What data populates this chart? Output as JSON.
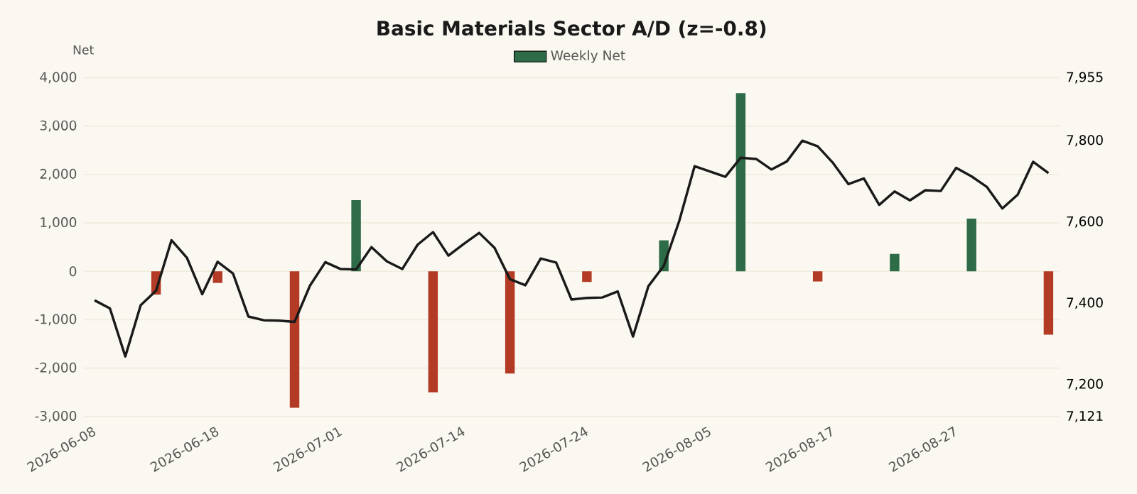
{
  "chart_data": {
    "type": "bar",
    "title": "Basic Materials Sector A/D (z=-0.8)",
    "ylabel": "Net",
    "categories": [
      "2026-06-08",
      null,
      null,
      null,
      null,
      null,
      null,
      null,
      "2026-06-18",
      null,
      null,
      null,
      null,
      null,
      null,
      null,
      "2026-07-01",
      null,
      null,
      null,
      null,
      null,
      null,
      null,
      "2026-07-14",
      null,
      null,
      null,
      null,
      null,
      null,
      null,
      "2026-07-24",
      null,
      null,
      null,
      null,
      null,
      null,
      null,
      "2026-08-05",
      null,
      null,
      null,
      null,
      null,
      null,
      null,
      "2026-08-17",
      null,
      null,
      null,
      null,
      null,
      null,
      null,
      "2026-08-27",
      null,
      null,
      null,
      null,
      null,
      null
    ],
    "series": [
      {
        "name": "Weekly Net",
        "color": "#2e6b47",
        "values": [
          null,
          null,
          null,
          null,
          -480,
          null,
          null,
          null,
          -240,
          null,
          null,
          null,
          null,
          -2820,
          null,
          null,
          null,
          1470,
          null,
          null,
          null,
          null,
          -2500,
          null,
          null,
          null,
          null,
          -2110,
          null,
          null,
          null,
          null,
          -220,
          null,
          null,
          null,
          null,
          640,
          null,
          null,
          null,
          null,
          3680,
          null,
          null,
          null,
          null,
          -210,
          null,
          null,
          null,
          null,
          360,
          null,
          null,
          null,
          null,
          1090,
          null,
          null,
          null,
          null,
          -1310
        ],
        "colors": [
          null,
          null,
          null,
          null,
          "#b33a24",
          null,
          null,
          null,
          "#b33a24",
          null,
          null,
          null,
          null,
          "#b33a24",
          null,
          null,
          null,
          "#2e6b47",
          null,
          null,
          null,
          null,
          "#b33a24",
          null,
          null,
          null,
          null,
          "#b33a24",
          null,
          null,
          null,
          null,
          "#b33a24",
          null,
          null,
          null,
          null,
          "#2e6b47",
          null,
          null,
          null,
          null,
          "#2e6b47",
          null,
          null,
          null,
          null,
          "#b33a24",
          null,
          null,
          null,
          null,
          "#2e6b47",
          null,
          null,
          null,
          null,
          "#2e6b47",
          null,
          null,
          null,
          null,
          "#b33a24"
        ]
      },
      {
        "type": "line",
        "axis": "y2",
        "color": "#1a1a1a",
        "values": [
          7407,
          7387,
          7269,
          7395,
          7431,
          7555,
          7512,
          7422,
          7502,
          7473,
          7367,
          7358,
          7357,
          7354,
          7443,
          7501,
          7484,
          7483,
          7538,
          7503,
          7484,
          7544,
          7575,
          7517,
          7546,
          7573,
          7536,
          7459,
          7444,
          7510,
          7500,
          7409,
          7413,
          7414,
          7429,
          7318,
          7442,
          7492,
          7602,
          7737,
          7724,
          7711,
          7758,
          7755,
          7729,
          7749,
          7800,
          7786,
          7745,
          7693,
          7707,
          7642,
          7675,
          7653,
          7678,
          7676,
          7733,
          7712,
          7686,
          7633,
          7667,
          7748,
          7720
        ]
      }
    ],
    "ylim": [
      -3000,
      4000
    ],
    "yticks": [
      {
        "value": -3000,
        "label": "-3,000"
      },
      {
        "value": -2000,
        "label": "-2,000"
      },
      {
        "value": -1000,
        "label": "-1,000"
      },
      0,
      {
        "value": 1000,
        "label": "1,000"
      },
      {
        "value": 2000,
        "label": "2,000"
      },
      {
        "value": 3000,
        "label": "3,000"
      },
      {
        "value": 4000,
        "label": "4,000"
      }
    ],
    "y2lim": [
      7121,
      7955
    ],
    "y2ticks": [
      {
        "value": 7121,
        "label": "7,121"
      },
      {
        "value": 7200,
        "label": "7,200"
      },
      {
        "value": 7400,
        "label": "7,400"
      },
      {
        "value": 7600,
        "label": "7,600"
      },
      {
        "value": 7800,
        "label": "7,800"
      },
      {
        "value": 7955,
        "label": "7,955"
      }
    ],
    "grid": "y",
    "legend": "top"
  }
}
